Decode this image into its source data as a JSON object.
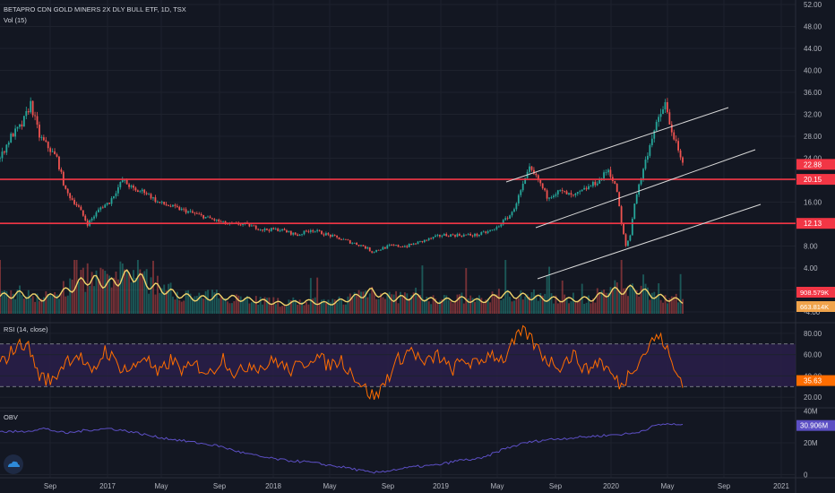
{
  "title_line": "BETAPRO CDN GOLD MINERS 2X DLY BULL ETF, 1D, TSX",
  "vol_label": "Vol (15)",
  "rsi_label": "RSI (14, close)",
  "obv_label": "OBV",
  "colors": {
    "bg": "#131722",
    "grid": "#1e222d",
    "up": "#26a69a",
    "down": "#ef5350",
    "level": "#f23645",
    "vol_ma": "#f0d36b",
    "rsi": "#ff6d00",
    "rsi_band": "#2a1f4a",
    "obv": "#5c4fc4",
    "channel": "#d8d8d8",
    "axis_text": "#b2b5be"
  },
  "chart_data": [
    {
      "type": "line",
      "name": "price",
      "x_labels": [
        "Sep",
        "2017",
        "May",
        "Sep",
        "2018",
        "May",
        "Sep",
        "2019",
        "May",
        "Sep",
        "2020",
        "May",
        "Sep",
        "2021"
      ],
      "y_ticks": [
        "52.00",
        "48.00",
        "44.00",
        "40.00",
        "36.00",
        "32.00",
        "28.00",
        "24.00",
        "20.00",
        "16.00",
        "12.00",
        "8.00",
        "4.00",
        "0.00",
        "-4.00"
      ],
      "ylim": [
        -4,
        52
      ],
      "horizontal_levels": [
        20.15,
        12.13
      ],
      "last_price": "22.88",
      "level_labels": [
        "20.15",
        "12.13"
      ],
      "keypoints": [
        [
          0,
          24
        ],
        [
          5,
          28
        ],
        [
          10,
          30
        ],
        [
          14,
          34
        ],
        [
          18,
          28
        ],
        [
          22,
          26
        ],
        [
          26,
          24
        ],
        [
          30,
          18
        ],
        [
          36,
          15
        ],
        [
          40,
          12
        ],
        [
          46,
          15
        ],
        [
          50,
          16
        ],
        [
          56,
          20
        ],
        [
          62,
          18
        ],
        [
          66,
          18
        ],
        [
          72,
          16
        ],
        [
          80,
          15
        ],
        [
          88,
          14
        ],
        [
          96,
          13
        ],
        [
          104,
          12
        ],
        [
          112,
          12
        ],
        [
          120,
          11
        ],
        [
          128,
          11
        ],
        [
          136,
          10
        ],
        [
          142,
          11
        ],
        [
          150,
          10
        ],
        [
          158,
          9
        ],
        [
          166,
          8
        ],
        [
          170,
          7
        ],
        [
          178,
          8
        ],
        [
          186,
          8
        ],
        [
          194,
          9
        ],
        [
          202,
          10
        ],
        [
          210,
          10
        ],
        [
          218,
          10
        ],
        [
          226,
          11
        ],
        [
          234,
          14
        ],
        [
          238,
          18
        ],
        [
          242,
          22
        ],
        [
          246,
          20
        ],
        [
          250,
          17
        ],
        [
          256,
          18
        ],
        [
          262,
          17
        ],
        [
          266,
          18
        ],
        [
          270,
          19
        ],
        [
          274,
          20
        ],
        [
          278,
          22
        ],
        [
          282,
          18
        ],
        [
          284,
          12
        ],
        [
          286,
          8
        ],
        [
          288,
          10
        ],
        [
          290,
          16
        ],
        [
          294,
          22
        ],
        [
          298,
          28
        ],
        [
          300,
          30
        ],
        [
          302,
          32
        ],
        [
          304,
          34
        ],
        [
          306,
          30
        ],
        [
          308,
          28
        ],
        [
          310,
          25
        ],
        [
          312,
          22.88
        ]
      ]
    },
    {
      "type": "bar",
      "name": "volume",
      "labels": [
        "908.579K",
        "663.814K"
      ],
      "ma_keypoints": [
        [
          0,
          0.35
        ],
        [
          10,
          0.4
        ],
        [
          20,
          0.3
        ],
        [
          30,
          0.45
        ],
        [
          40,
          0.7
        ],
        [
          50,
          0.6
        ],
        [
          60,
          0.8
        ],
        [
          70,
          0.55
        ],
        [
          80,
          0.4
        ],
        [
          90,
          0.3
        ],
        [
          100,
          0.35
        ],
        [
          110,
          0.3
        ],
        [
          120,
          0.25
        ],
        [
          130,
          0.2
        ],
        [
          140,
          0.25
        ],
        [
          150,
          0.2
        ],
        [
          160,
          0.3
        ],
        [
          170,
          0.45
        ],
        [
          180,
          0.3
        ],
        [
          190,
          0.35
        ],
        [
          200,
          0.25
        ],
        [
          210,
          0.3
        ],
        [
          220,
          0.25
        ],
        [
          230,
          0.4
        ],
        [
          240,
          0.35
        ],
        [
          250,
          0.3
        ],
        [
          260,
          0.28
        ],
        [
          270,
          0.3
        ],
        [
          280,
          0.45
        ],
        [
          290,
          0.5
        ],
        [
          300,
          0.35
        ],
        [
          312,
          0.25
        ]
      ]
    },
    {
      "type": "line",
      "name": "RSI (14, close)",
      "y_ticks": [
        "80.00",
        "60.00",
        "40.00",
        "20.00"
      ],
      "ylim": [
        10,
        90
      ],
      "bands": [
        70,
        30
      ],
      "last_value": "35.63",
      "keypoints": [
        [
          0,
          50
        ],
        [
          6,
          65
        ],
        [
          12,
          72
        ],
        [
          18,
          40
        ],
        [
          24,
          35
        ],
        [
          30,
          55
        ],
        [
          36,
          60
        ],
        [
          42,
          40
        ],
        [
          48,
          65
        ],
        [
          54,
          50
        ],
        [
          60,
          45
        ],
        [
          66,
          60
        ],
        [
          72,
          40
        ],
        [
          78,
          55
        ],
        [
          84,
          45
        ],
        [
          90,
          50
        ],
        [
          96,
          42
        ],
        [
          102,
          58
        ],
        [
          108,
          40
        ],
        [
          114,
          52
        ],
        [
          120,
          48
        ],
        [
          126,
          55
        ],
        [
          132,
          45
        ],
        [
          138,
          50
        ],
        [
          144,
          60
        ],
        [
          150,
          50
        ],
        [
          156,
          55
        ],
        [
          162,
          40
        ],
        [
          168,
          25
        ],
        [
          172,
          20
        ],
        [
          176,
          35
        ],
        [
          182,
          55
        ],
        [
          188,
          65
        ],
        [
          194,
          50
        ],
        [
          200,
          60
        ],
        [
          206,
          45
        ],
        [
          212,
          55
        ],
        [
          218,
          50
        ],
        [
          224,
          62
        ],
        [
          230,
          55
        ],
        [
          236,
          75
        ],
        [
          240,
          82
        ],
        [
          244,
          70
        ],
        [
          250,
          55
        ],
        [
          256,
          50
        ],
        [
          262,
          60
        ],
        [
          268,
          45
        ],
        [
          274,
          55
        ],
        [
          280,
          40
        ],
        [
          284,
          30
        ],
        [
          288,
          45
        ],
        [
          294,
          60
        ],
        [
          300,
          78
        ],
        [
          304,
          70
        ],
        [
          308,
          45
        ],
        [
          312,
          35.63
        ]
      ]
    },
    {
      "type": "line",
      "name": "OBV",
      "y_ticks": [
        "40M",
        "20M",
        "0"
      ],
      "ylim": [
        -2,
        42
      ],
      "last_value": "30.906M",
      "keypoints": [
        [
          0,
          27
        ],
        [
          10,
          27
        ],
        [
          20,
          29
        ],
        [
          30,
          26
        ],
        [
          40,
          28
        ],
        [
          50,
          29
        ],
        [
          60,
          27
        ],
        [
          70,
          24
        ],
        [
          80,
          22
        ],
        [
          90,
          20
        ],
        [
          100,
          18
        ],
        [
          110,
          14
        ],
        [
          120,
          11
        ],
        [
          130,
          9
        ],
        [
          140,
          8
        ],
        [
          150,
          6
        ],
        [
          160,
          4
        ],
        [
          170,
          1
        ],
        [
          180,
          3
        ],
        [
          190,
          5
        ],
        [
          200,
          6
        ],
        [
          210,
          9
        ],
        [
          220,
          10
        ],
        [
          230,
          16
        ],
        [
          240,
          20
        ],
        [
          250,
          22
        ],
        [
          260,
          23
        ],
        [
          270,
          24
        ],
        [
          280,
          25
        ],
        [
          290,
          26
        ],
        [
          300,
          31
        ],
        [
          305,
          32
        ],
        [
          312,
          30.9
        ]
      ]
    }
  ]
}
